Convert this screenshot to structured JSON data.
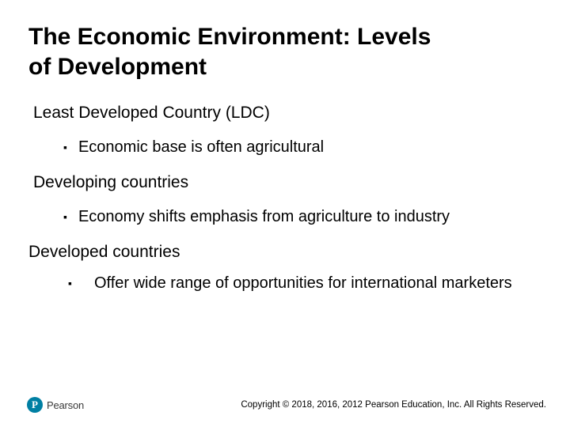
{
  "colors": {
    "accent": "#007fa3",
    "text": "#000000",
    "background": "#ffffff"
  },
  "title": {
    "line1": "The Economic Environment: Levels",
    "line2": "of Development"
  },
  "sections": [
    {
      "heading": "Least Developed Country (LDC)",
      "bullet": "Economic base is often agricultural"
    },
    {
      "heading": "Developing countries",
      "bullet": "Economy shifts emphasis from agriculture to industry"
    },
    {
      "heading": "Developed countries",
      "bullet": "Offer wide range of opportunities for international marketers"
    }
  ],
  "footer": {
    "logo_letter": "P",
    "logo_text": "Pearson",
    "copyright": "Copyright © 2018, 2016, 2012 Pearson Education, Inc. All Rights Reserved."
  }
}
